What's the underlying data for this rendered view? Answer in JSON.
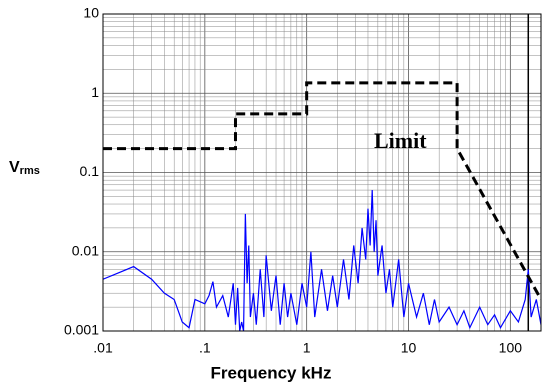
{
  "chart_data": {
    "type": "line",
    "xlabel": "Frequency kHz",
    "ylabel": "V",
    "ylabel_sub": "rms",
    "annotation": "Limit",
    "xlog": true,
    "ylog": true,
    "grid": true,
    "minor_grid": true,
    "xlim": [
      0.01,
      200
    ],
    "ylim": [
      0.001,
      10
    ],
    "xticks": [
      {
        "value": 0.01,
        "label": ".01"
      },
      {
        "value": 0.1,
        "label": ".1"
      },
      1,
      10,
      100
    ],
    "yticks": [
      0.001,
      0.01,
      0.1,
      1,
      10
    ],
    "vline": 150,
    "series": [
      {
        "color": "#0000ff",
        "dash": false,
        "x": [
          0.01,
          0.02,
          0.03,
          0.04,
          0.05,
          0.06,
          0.07,
          0.08,
          0.1,
          0.11,
          0.12,
          0.13,
          0.15,
          0.17,
          0.19,
          0.2,
          0.21,
          0.22,
          0.23,
          0.24,
          0.25,
          0.26,
          0.27,
          0.28,
          0.3,
          0.32,
          0.35,
          0.38,
          0.4,
          0.45,
          0.5,
          0.55,
          0.6,
          0.65,
          0.7,
          0.8,
          0.9,
          1.0,
          1.1,
          1.2,
          1.4,
          1.6,
          1.8,
          2.0,
          2.3,
          2.6,
          2.9,
          3.2,
          3.5,
          3.8,
          4.0,
          4.2,
          4.4,
          4.6,
          4.8,
          5.0,
          5.5,
          6.0,
          6.5,
          7.0,
          8.0,
          9.0,
          10,
          12,
          14,
          16,
          18,
          20,
          25,
          30,
          35,
          40,
          50,
          60,
          70,
          80,
          100,
          120,
          140,
          150,
          160,
          180,
          200
        ],
        "values": [
          0.0045,
          0.0065,
          0.0045,
          0.003,
          0.0025,
          0.0013,
          0.0011,
          0.0025,
          0.0022,
          0.0028,
          0.0042,
          0.002,
          0.0028,
          0.0015,
          0.004,
          0.0012,
          0.0035,
          0.001,
          0.0013,
          0.001,
          0.03,
          0.004,
          0.012,
          0.0015,
          0.003,
          0.0012,
          0.006,
          0.0015,
          0.009,
          0.0018,
          0.005,
          0.0012,
          0.004,
          0.0015,
          0.003,
          0.0012,
          0.004,
          0.002,
          0.01,
          0.0015,
          0.006,
          0.0018,
          0.005,
          0.002,
          0.008,
          0.0025,
          0.012,
          0.004,
          0.02,
          0.008,
          0.035,
          0.012,
          0.06,
          0.01,
          0.025,
          0.005,
          0.012,
          0.003,
          0.006,
          0.002,
          0.008,
          0.0015,
          0.004,
          0.0015,
          0.003,
          0.0012,
          0.0025,
          0.0013,
          0.002,
          0.0012,
          0.0018,
          0.0011,
          0.002,
          0.0012,
          0.0016,
          0.0011,
          0.0018,
          0.0013,
          0.0025,
          0.006,
          0.0015,
          0.0025,
          0.0012
        ]
      },
      {
        "color": "#000000",
        "dash": true,
        "x": [
          0.01,
          0.2,
          0.2,
          1,
          1,
          30,
          30,
          200
        ],
        "values": [
          0.2,
          0.2,
          0.55,
          0.55,
          1.35,
          1.35,
          0.2,
          0.0025
        ]
      }
    ]
  }
}
